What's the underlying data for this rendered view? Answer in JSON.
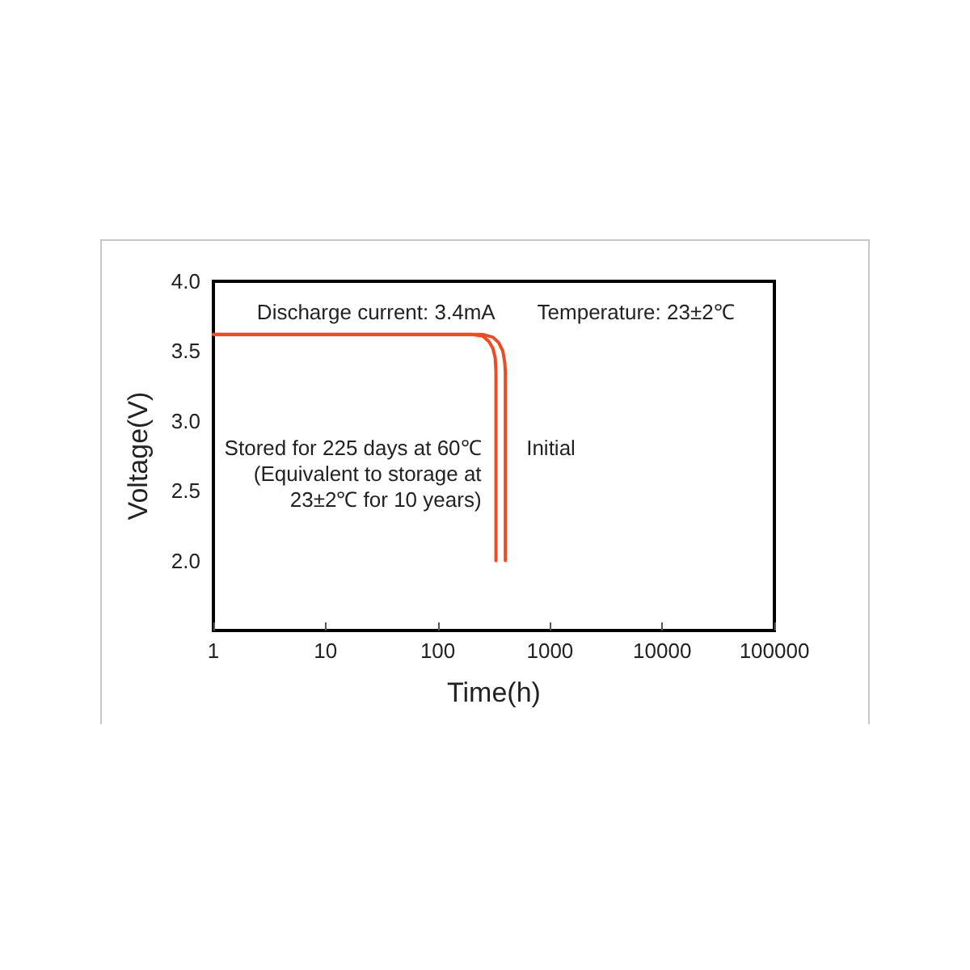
{
  "chart_data": {
    "type": "line",
    "annotations": [
      "Discharge current: 3.4mA",
      "Temperature: 23±2℃"
    ],
    "xlabel": "Time(h)",
    "ylabel": "Voltage(V)",
    "log": "x",
    "xlim": [
      1,
      100000
    ],
    "xticks": [
      1,
      10,
      100,
      1000,
      10000,
      100000
    ],
    "ylim": [
      1.5,
      4.0
    ],
    "yticks": [
      {
        "value": 2,
        "label": "2.0"
      },
      {
        "value": 2.5,
        "label": "2.5"
      },
      {
        "value": 3,
        "label": "3.0"
      },
      {
        "value": 3.5,
        "label": "3.5"
      },
      {
        "value": 4,
        "label": "4.0"
      }
    ],
    "marker": "none",
    "line_style": "solid",
    "series": [
      {
        "name": "Stored for 225 days at 60℃\n(Equivalent to storage at\n23±2℃ for 10 years)",
        "color": "#ef4b22",
        "x": [
          1,
          200,
          250,
          285,
          310,
          325,
          330,
          330
        ],
        "values": [
          3.62,
          3.62,
          3.61,
          3.57,
          3.52,
          3.45,
          3.35,
          2.0
        ]
      },
      {
        "name": "Initial",
        "color": "#ef4b22",
        "x": [
          1,
          250,
          310,
          350,
          380,
          395,
          400,
          400
        ],
        "values": [
          3.62,
          3.62,
          3.6,
          3.56,
          3.5,
          3.42,
          3.35,
          2.0
        ]
      }
    ]
  }
}
